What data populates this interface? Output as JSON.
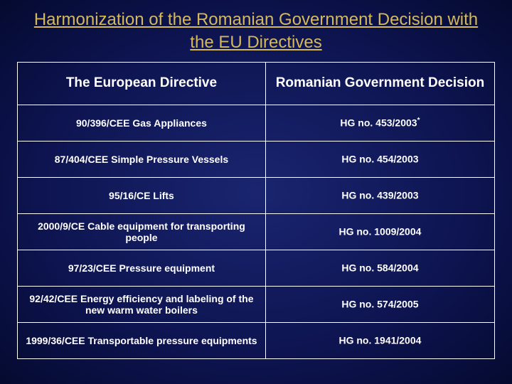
{
  "title": "Harmonization of the Romanian Government Decision with the EU Directives",
  "headers": {
    "left": "The European Directive",
    "right": "Romanian Government Decision"
  },
  "rows": [
    {
      "directive": "90/396/CEE  Gas Appliances",
      "decision": "HG no.  453/2003",
      "decision_sup": "*"
    },
    {
      "directive": "87/404/CEE  Simple Pressure Vessels",
      "decision": "HG no.  454/2003",
      "decision_sup": ""
    },
    {
      "directive": "95/16/CE  Lifts",
      "decision": "HG no.  439/2003",
      "decision_sup": ""
    },
    {
      "directive": "2000/9/CE  Cable equipment for transporting people",
      "decision": "HG no.  1009/2004",
      "decision_sup": ""
    },
    {
      "directive": "97/23/CEE  Pressure equipment",
      "decision": "HG no.  584/2004",
      "decision_sup": ""
    },
    {
      "directive": "92/42/CEE Energy efficiency and labeling  of the new warm water boilers",
      "decision": "HG no.  574/2005",
      "decision_sup": ""
    },
    {
      "directive": "1999/36/CEE Transportable pressure equipments",
      "decision": "HG no.  1941/2004",
      "decision_sup": ""
    }
  ],
  "style": {
    "title_color": "#d4b85a",
    "text_color": "#ffffff",
    "border_color": "#ffffff",
    "bg_inner": "#1a2570",
    "bg_outer": "#050a30",
    "title_fontsize": 24,
    "header_fontsize": 19,
    "cell_fontsize": 14
  }
}
